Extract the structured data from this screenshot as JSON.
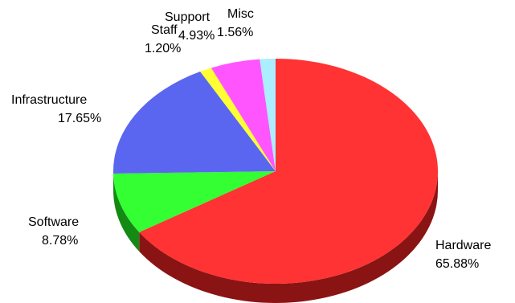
{
  "chart_data": {
    "type": "pie",
    "variant": "3d",
    "slices": [
      {
        "label": "Hardware",
        "pct_label": "65.88%",
        "value": 65.88,
        "color": "#ff3333",
        "side_color": "#8a1414"
      },
      {
        "label": "Software",
        "pct_label": "8.78%",
        "value": 8.78,
        "color": "#33ff33",
        "side_color": "#148a14"
      },
      {
        "label": "Infrastructure",
        "pct_label": "17.65%",
        "value": 17.65,
        "color": "#5b66f0",
        "side_color": "#2a3290"
      },
      {
        "label": "Staff",
        "pct_label": "1.20%",
        "value": 1.2,
        "color": "#ffff33",
        "side_color": "#8a8a14"
      },
      {
        "label": "Support",
        "pct_label": "4.93%",
        "value": 4.93,
        "color": "#ff55ff",
        "side_color": "#8a2a8a"
      },
      {
        "label": "Misc",
        "pct_label": "1.56%",
        "value": 1.56,
        "color": "#aaeeff",
        "side_color": "#5a8a99"
      }
    ],
    "legend": "none"
  }
}
